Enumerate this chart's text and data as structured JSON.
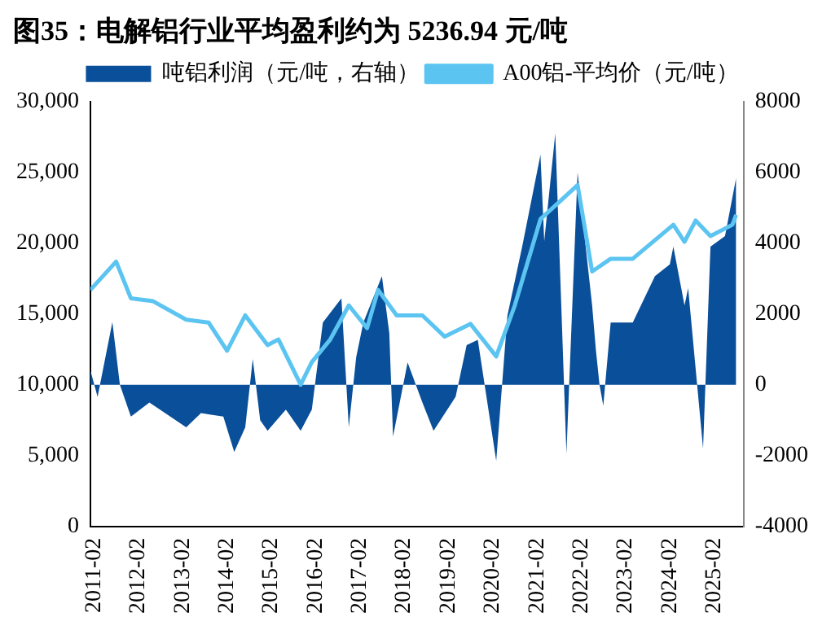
{
  "chart_data": {
    "type": "line",
    "title": "图35：电解铝行业平均盈利约为 5236.94 元/吨",
    "legend": "top",
    "grid": false,
    "marker": "none",
    "line_style": "solid",
    "xlim": [
      "2011-01",
      "2025-10"
    ],
    "xticks": [
      "2011-02",
      "2012-02",
      "2013-02",
      "2014-02",
      "2015-02",
      "2016-02",
      "2017-02",
      "2018-02",
      "2019-02",
      "2020-02",
      "2021-02",
      "2022-02",
      "2023-02",
      "2024-02",
      "2025-02"
    ],
    "ylim": [
      0,
      30000
    ],
    "yticks": [
      {
        "value": 0,
        "label": "0"
      },
      {
        "value": 5000,
        "label": "5,000"
      },
      {
        "value": 10000,
        "label": "10,000"
      },
      {
        "value": 15000,
        "label": "15,000"
      },
      {
        "value": 20000,
        "label": "20,000"
      },
      {
        "value": 25000,
        "label": "25,000"
      },
      {
        "value": 30000,
        "label": "30,000"
      }
    ],
    "y2lim": [
      -4000,
      8000
    ],
    "y2ticks": [
      -4000,
      -2000,
      0,
      2000,
      4000,
      6000,
      8000
    ],
    "series": [
      {
        "name": "吨铝利润（元/吨，右轴）",
        "type": "area",
        "axis": "y2",
        "color": "#0a4f99",
        "x": [
          "2011-01",
          "2011-03",
          "2011-07",
          "2011-09",
          "2011-12",
          "2012-05",
          "2013-03",
          "2013-07",
          "2014-01",
          "2014-04",
          "2014-07",
          "2014-09",
          "2014-11",
          "2015-01",
          "2015-06",
          "2015-10",
          "2016-01",
          "2016-04",
          "2016-09",
          "2016-11",
          "2017-01",
          "2017-03",
          "2017-08",
          "2017-10",
          "2017-11",
          "2018-03",
          "2018-07",
          "2018-10",
          "2019-04",
          "2019-07",
          "2019-10",
          "2020-03",
          "2020-06",
          "2020-10",
          "2021-03",
          "2021-04",
          "2021-07",
          "2021-10",
          "2022-01",
          "2022-05",
          "2022-06",
          "2022-07",
          "2022-08",
          "2022-10",
          "2023-04",
          "2023-10",
          "2024-02",
          "2024-03",
          "2024-06",
          "2024-07",
          "2024-11",
          "2025-01",
          "2025-05",
          "2025-08"
        ],
        "values": [
          400,
          -340,
          1770,
          0,
          -900,
          -500,
          -1200,
          -800,
          -900,
          -1900,
          -1200,
          730,
          -1000,
          -1300,
          -700,
          -1300,
          -700,
          1760,
          2440,
          -1200,
          780,
          1760,
          3070,
          1460,
          -1460,
          630,
          -500,
          -1300,
          -340,
          1120,
          1270,
          -2150,
          1950,
          3900,
          6500,
          4050,
          7100,
          -1950,
          6000,
          2240,
          980,
          0,
          -590,
          1760,
          1760,
          3070,
          3400,
          3900,
          2240,
          2730,
          -1800,
          3900,
          4200,
          5850
        ]
      },
      {
        "name": "A00铝-平均价（元/吨）",
        "color": "#5bc4f1",
        "x": [
          "2011-01",
          "2011-08",
          "2011-12",
          "2012-06",
          "2013-03",
          "2013-09",
          "2014-02",
          "2014-07",
          "2015-01",
          "2015-04",
          "2015-10",
          "2016-01",
          "2016-06",
          "2016-11",
          "2017-04",
          "2017-07",
          "2017-12",
          "2018-07",
          "2019-01",
          "2019-08",
          "2020-03",
          "2020-08",
          "2021-03",
          "2021-08",
          "2022-01",
          "2022-05",
          "2022-10",
          "2023-04",
          "2024-03",
          "2024-06",
          "2024-09",
          "2025-01",
          "2025-07",
          "2025-08"
        ],
        "values": [
          16700,
          18700,
          16100,
          15900,
          14600,
          14400,
          12400,
          14900,
          12800,
          13200,
          10000,
          11600,
          13200,
          15600,
          14000,
          16700,
          14900,
          14900,
          13400,
          14300,
          12000,
          15600,
          21700,
          22900,
          24100,
          18000,
          18900,
          18900,
          21300,
          20100,
          21600,
          20500,
          21300,
          22000
        ]
      }
    ]
  }
}
